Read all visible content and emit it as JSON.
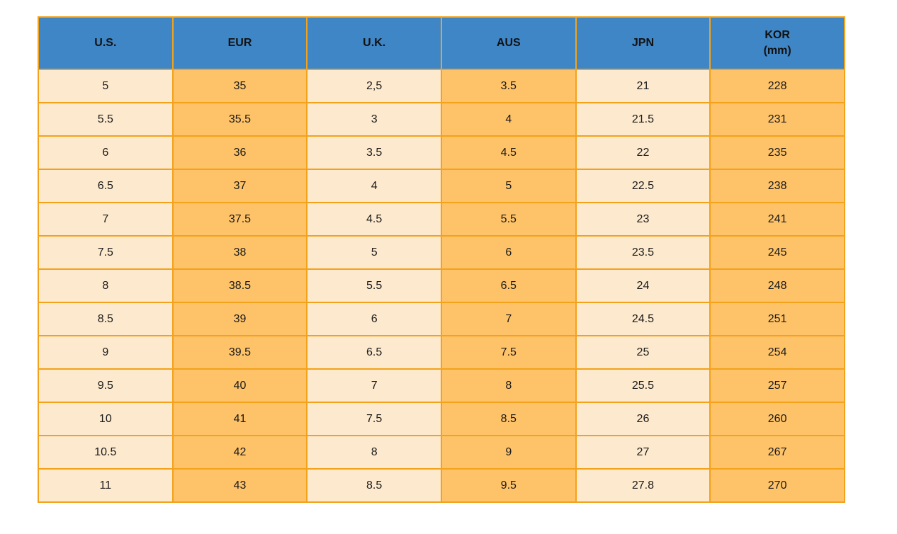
{
  "colors": {
    "header_bg": "#3F86C6",
    "row_cream": "#FDE9CD",
    "row_orange": "#FEC268",
    "grid_border": "#F3A21A",
    "text": "#1A1A1A"
  },
  "table": {
    "columns": [
      {
        "id": "us",
        "label": "U.S.",
        "sublabel": ""
      },
      {
        "id": "eur",
        "label": "EUR",
        "sublabel": ""
      },
      {
        "id": "uk",
        "label": "U.K.",
        "sublabel": ""
      },
      {
        "id": "aus",
        "label": "AUS",
        "sublabel": ""
      },
      {
        "id": "jpn",
        "label": "JPN",
        "sublabel": ""
      },
      {
        "id": "kor",
        "label": "KOR",
        "sublabel": "(mm)"
      }
    ],
    "column_fill_pattern": [
      "cream",
      "orange",
      "cream",
      "orange",
      "cream",
      "orange"
    ],
    "rows": [
      [
        "5",
        "35",
        "2,5",
        "3.5",
        "21",
        "228"
      ],
      [
        "5.5",
        "35.5",
        "3",
        "4",
        "21.5",
        "231"
      ],
      [
        "6",
        "36",
        "3.5",
        "4.5",
        "22",
        "235"
      ],
      [
        "6.5",
        "37",
        "4",
        "5",
        "22.5",
        "238"
      ],
      [
        "7",
        "37.5",
        "4.5",
        "5.5",
        "23",
        "241"
      ],
      [
        "7.5",
        "38",
        "5",
        "6",
        "23.5",
        "245"
      ],
      [
        "8",
        "38.5",
        "5.5",
        "6.5",
        "24",
        "248"
      ],
      [
        "8.5",
        "39",
        "6",
        "7",
        "24.5",
        "251"
      ],
      [
        "9",
        "39.5",
        "6.5",
        "7.5",
        "25",
        "254"
      ],
      [
        "9.5",
        "40",
        "7",
        "8",
        "25.5",
        "257"
      ],
      [
        "10",
        "41",
        "7.5",
        "8.5",
        "26",
        "260"
      ],
      [
        "10.5",
        "42",
        "8",
        "9",
        "27",
        "267"
      ],
      [
        "11",
        "43",
        "8.5",
        "9.5",
        "27.8",
        "270"
      ]
    ]
  }
}
